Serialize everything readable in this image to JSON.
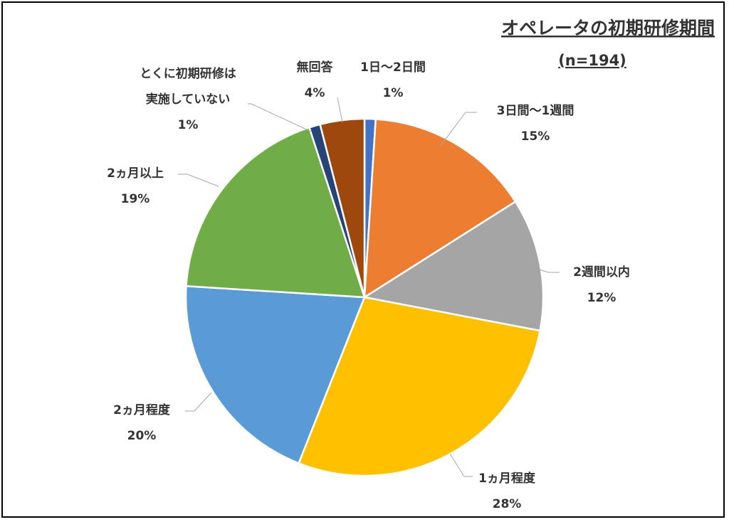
{
  "chart_data": {
    "type": "pie",
    "title": "オペレータの初期研修期間",
    "subtitle": "(n=194)",
    "slices": [
      {
        "label": "1日〜2日間",
        "pct": "1%",
        "value": 1,
        "color": "#4472C4"
      },
      {
        "label": "3日間〜1週間",
        "pct": "15%",
        "value": 15,
        "color": "#ED7D31"
      },
      {
        "label": "2週間以内",
        "pct": "12%",
        "value": 12,
        "color": "#A5A5A5"
      },
      {
        "label": "1ヵ月程度",
        "pct": "28%",
        "value": 28,
        "color": "#FFC000"
      },
      {
        "label": "2ヵ月程度",
        "pct": "20%",
        "value": 20,
        "color": "#5B9BD5"
      },
      {
        "label": "2ヵ月以上",
        "pct": "19%",
        "value": 19,
        "color": "#70AD47"
      },
      {
        "label": "とくに初期研修は実施していない",
        "pct": "1%",
        "value": 1,
        "color": "#264478"
      },
      {
        "label": "無回答",
        "pct": "4%",
        "value": 4,
        "color": "#9E480E"
      }
    ]
  }
}
